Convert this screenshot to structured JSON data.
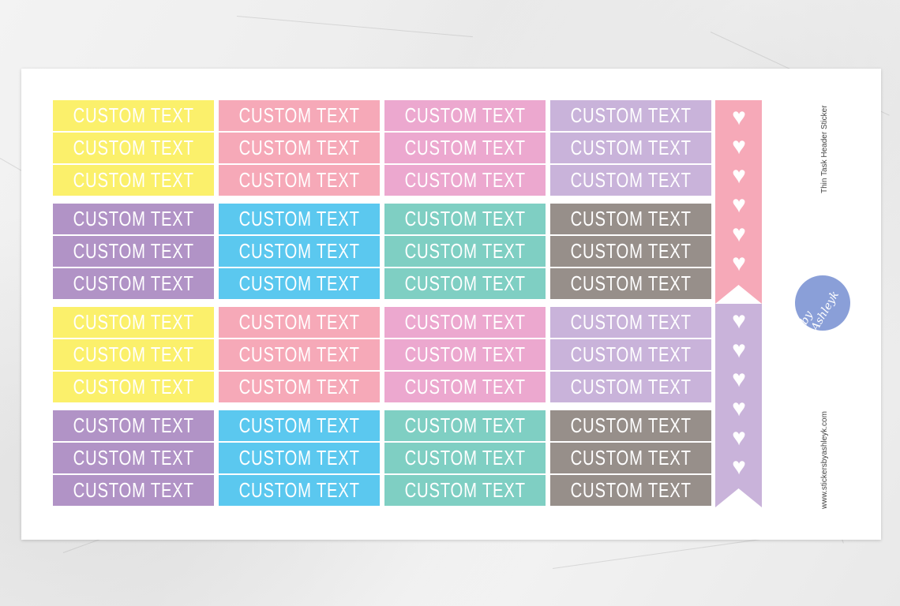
{
  "sheet": {
    "title": "Thin Task Header  Sticker",
    "website": "www.stickersbyashleyk.com",
    "logo_text": "by Ashleyk"
  },
  "sticker_label": "CUSTOM TEXT",
  "colors": {
    "yellow": "#fbf06b",
    "pink": "#f6a9b8",
    "orchid": "#eca8cf",
    "lavender": "#c9b3da",
    "purple": "#b193c6",
    "blue": "#5bc8ef",
    "teal": "#7fcfc3",
    "gray": "#978f8a",
    "logo": "#8a9fd8"
  },
  "groups": [
    [
      "yellow",
      "pink",
      "orchid",
      "lavender"
    ],
    [
      "purple",
      "blue",
      "teal",
      "gray"
    ],
    [
      "yellow",
      "pink",
      "orchid",
      "lavender"
    ],
    [
      "purple",
      "blue",
      "teal",
      "gray"
    ]
  ],
  "banners": [
    {
      "color": "pink",
      "icon": "heart-icon",
      "hearts": 6
    },
    {
      "color": "lavender",
      "icon": "heart-icon",
      "hearts": 6
    }
  ]
}
